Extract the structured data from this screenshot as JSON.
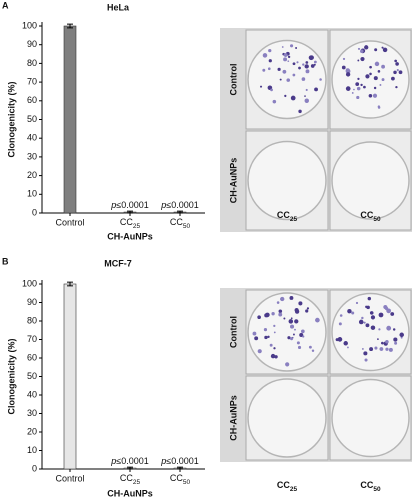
{
  "chart_data": [
    {
      "type": "bar",
      "panel": "A",
      "title": "HeLa",
      "ylabel": "Clonogenicity (%)",
      "xlabel": "CH-AuNPs",
      "categories": [
        "Control",
        "CC25",
        "CC50"
      ],
      "values": [
        100,
        0.5,
        0.5
      ],
      "errors": [
        1,
        0.5,
        0.5
      ],
      "bar_labels": [
        null,
        "p≤0.0001",
        "p≤0.0001"
      ],
      "color": "#7f7f7f",
      "ylim": [
        0,
        100
      ],
      "yticks": [
        0,
        10,
        20,
        30,
        40,
        50,
        60,
        70,
        80,
        90,
        100
      ],
      "image_row_labels": [
        "Control",
        "CH-AuNPs"
      ],
      "image_col_labels": [
        "CC25",
        "CC50"
      ]
    },
    {
      "type": "bar",
      "panel": "B",
      "title": "MCF-7",
      "ylabel": "Clonogenicity (%)",
      "xlabel": "CH-AuNPs",
      "categories": [
        "Control",
        "CC25",
        "CC50"
      ],
      "values": [
        100,
        0.5,
        0.5
      ],
      "errors": [
        1,
        0.5,
        0.5
      ],
      "bar_labels": [
        null,
        "p≤0.0001",
        "p≤0.0001"
      ],
      "color": "#e6e6e6",
      "ylim": [
        0,
        100
      ],
      "yticks": [
        0,
        10,
        20,
        30,
        40,
        50,
        60,
        70,
        80,
        90,
        100
      ],
      "image_row_labels": [
        "Control",
        "CH-AuNPs"
      ],
      "image_col_labels": [
        "CC25",
        "CC50"
      ]
    }
  ]
}
